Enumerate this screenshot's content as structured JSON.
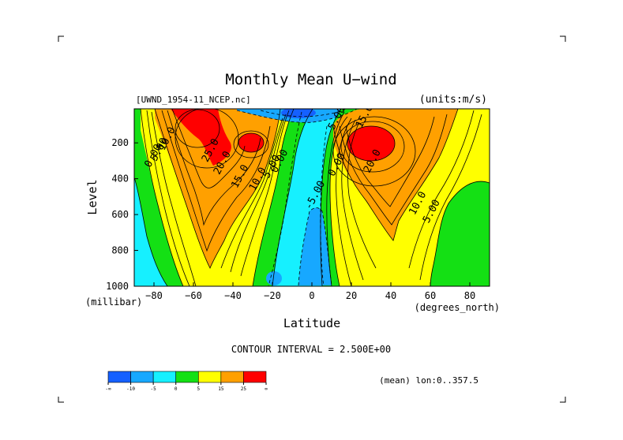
{
  "colors": {
    "levels": [
      "#1560ff",
      "#17a8ff",
      "#16f0ff",
      "#14e014",
      "#ffff00",
      "#ffa000",
      "#ff0000"
    ],
    "contour": "#000000"
  },
  "header": {
    "title": "Monthly Mean U−wind",
    "dataset": "[UWND_1954-11_NCEP.nc]",
    "units": "(units:m/s)"
  },
  "colorbar": {
    "labels": [
      "-∞",
      "-10",
      "-5",
      "0",
      "5",
      "15",
      "25",
      "∞"
    ]
  },
  "footer": {
    "contour_interval": "CONTOUR INTERVAL = 2.500E+00",
    "mean_info": "(mean) lon:0..357.5"
  },
  "chart_data": {
    "type": "contour",
    "title": "Monthly Mean U−wind",
    "xlabel": "Latitude",
    "xunits": "(degrees_north)",
    "ylabel": "Level",
    "yunits": "(millibar)",
    "x_range": [
      -90,
      90
    ],
    "y_range": [
      1000,
      10
    ],
    "x_ticks": [
      -80,
      -60,
      -40,
      -20,
      0,
      20,
      40,
      60,
      80
    ],
    "x_tick_labels": [
      "−80",
      "−60",
      "−40",
      "−20",
      "0",
      "20",
      "40",
      "60",
      "80"
    ],
    "y_ticks": [
      200,
      400,
      600,
      800,
      1000
    ],
    "y_tick_labels": [
      "200",
      "400",
      "600",
      "800",
      "1000"
    ],
    "contour_interval": 2.5,
    "legend_bins": [
      "< -10",
      "-10 to -5",
      "-5 to 0",
      "0 to 5",
      "5 to 15",
      "15 to 25",
      "> 25"
    ],
    "jets": [
      {
        "lat": -55,
        "level": 120,
        "max_u": 35
      },
      {
        "lat": -30,
        "level": 200,
        "max_u": 27
      },
      {
        "lat": 35,
        "level": 200,
        "max_u": 33
      }
    ],
    "contour_labels": [
      {
        "text": "0.00",
        "lat": -79,
        "level": 280
      },
      {
        "text": "5.00",
        "lat": -76,
        "level": 245
      },
      {
        "text": "10.0",
        "lat": -72,
        "level": 185
      },
      {
        "text": "25.0",
        "lat": -50,
        "level": 250
      },
      {
        "text": "20.0",
        "lat": -44,
        "level": 320
      },
      {
        "text": "15.0",
        "lat": -35,
        "level": 395
      },
      {
        "text": "10.0",
        "lat": -26,
        "level": 410
      },
      {
        "text": "5.00",
        "lat": -19,
        "level": 340
      },
      {
        "text": "0.00",
        "lat": -15,
        "level": 310
      },
      {
        "text": "-5.00",
        "lat": 3,
        "level": 500
      },
      {
        "text": "0.00",
        "lat": 14,
        "level": 330
      },
      {
        "text": "20.0",
        "lat": 32,
        "level": 310
      },
      {
        "text": "10.0",
        "lat": 55,
        "level": 545
      },
      {
        "text": "5.00",
        "lat": 62,
        "level": 590
      },
      {
        "text": "5.00",
        "lat": 14,
        "level": 70
      },
      {
        "text": "15.0",
        "lat": 28,
        "level": 60
      }
    ]
  }
}
